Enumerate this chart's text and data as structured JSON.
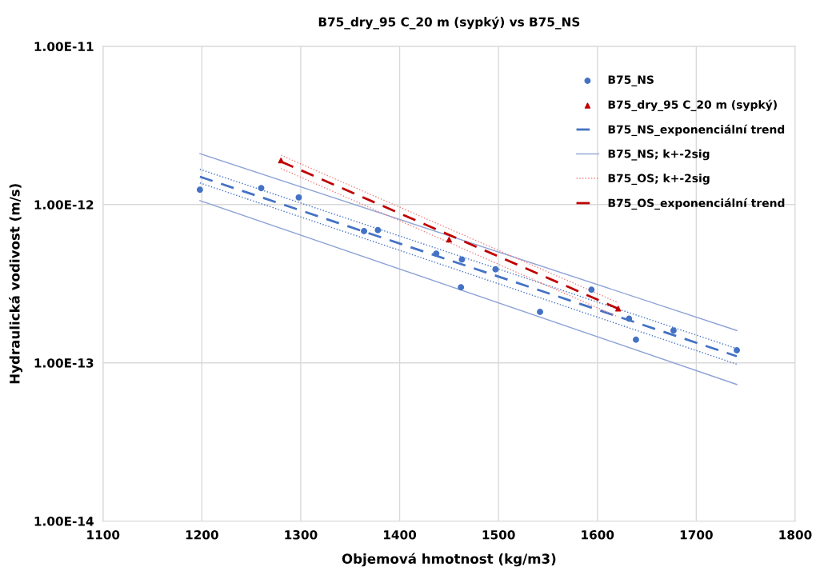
{
  "chart_data": {
    "type": "scatter",
    "title": "B75_dry_95 C_20 m (sypký) vs B75_NS",
    "xlabel": "Objemová hmotnost (kg/m3)",
    "ylabel": "Hydraulická vodivost (m/s)",
    "log": "y",
    "grid": true,
    "legend": "top right",
    "xlim": [
      1100,
      1800
    ],
    "xticks": [
      1100,
      1200,
      1300,
      1400,
      1500,
      1600,
      1700,
      1800
    ],
    "ylim": [
      1e-14,
      1e-11
    ],
    "yticks": [
      {
        "value": 1e-14,
        "label": "1.00E-14"
      },
      {
        "value": 1e-13,
        "label": "1.00E-13"
      },
      {
        "value": 1e-12,
        "label": "1.00E-12"
      },
      {
        "value": 1e-11,
        "label": "1.00E-11"
      }
    ],
    "series": [
      {
        "name": "B75_NS",
        "marker": "circle",
        "color": "#4472c4",
        "x": [
          1198,
          1260,
          1298,
          1364,
          1378,
          1437,
          1463,
          1462,
          1497,
          1542,
          1594,
          1632,
          1639,
          1677,
          1741
        ],
        "values": [
          1.24e-12,
          1.27e-12,
          1.11e-12,
          6.8e-13,
          6.9e-13,
          4.9e-13,
          4.5e-13,
          3e-13,
          3.9e-13,
          2.1e-13,
          2.9e-13,
          1.9e-13,
          1.4e-13,
          1.6e-13,
          1.2e-13
        ]
      },
      {
        "name": "B75_dry_95 C_20 m (sypký)",
        "marker": "triangle",
        "color": "#c00000",
        "x": [
          1280,
          1450,
          1621
        ],
        "values": [
          1.9e-12,
          6e-13,
          2.2e-13
        ]
      },
      {
        "name": "B75_NS_exponenciální trend",
        "type": "line",
        "line_style": "dashed",
        "marker": "none",
        "color": "#4472c4",
        "x": [
          1198,
          1741
        ],
        "values": [
          1.5e-12,
          1.1e-13
        ]
      },
      {
        "name": "B75_NS; k+-2sig",
        "type": "line",
        "line_style": "solid",
        "marker": "none",
        "color": "#8ea3d6",
        "x": [
          1198,
          1741
        ],
        "values": [
          2.1e-12,
          1.6e-13
        ]
      },
      {
        "type": "line",
        "line_style": "solid",
        "marker": "none",
        "color": "#8ea3d6",
        "x": [
          1198,
          1741
        ],
        "values": [
          1.06e-12,
          7.3e-14
        ]
      },
      {
        "type": "line",
        "line_style": "dotted",
        "marker": "none",
        "color": "#4472c4",
        "x": [
          1198,
          1741
        ],
        "values": [
          1.67e-12,
          1.23e-13
        ]
      },
      {
        "type": "line",
        "line_style": "dotted",
        "marker": "none",
        "color": "#4472c4",
        "x": [
          1198,
          1741
        ],
        "values": [
          1.37e-12,
          9.8e-14
        ]
      },
      {
        "name": "B75_OS; k+-2sig",
        "type": "line",
        "line_style": "dotted",
        "marker": "none",
        "color": "#f08080",
        "x": [
          1280,
          1621
        ],
        "values": [
          2.05e-12,
          2.4e-13
        ]
      },
      {
        "type": "line",
        "line_style": "dotted",
        "marker": "none",
        "color": "#f08080",
        "x": [
          1280,
          1621
        ],
        "values": [
          1.69e-12,
          1.95e-13
        ]
      },
      {
        "name": "B75_OS_exponenciální trend",
        "type": "line",
        "line_style": "dashed",
        "marker": "none",
        "color": "#c00000",
        "x": [
          1280,
          1621
        ],
        "values": [
          1.87e-12,
          2.2e-13
        ]
      }
    ]
  }
}
